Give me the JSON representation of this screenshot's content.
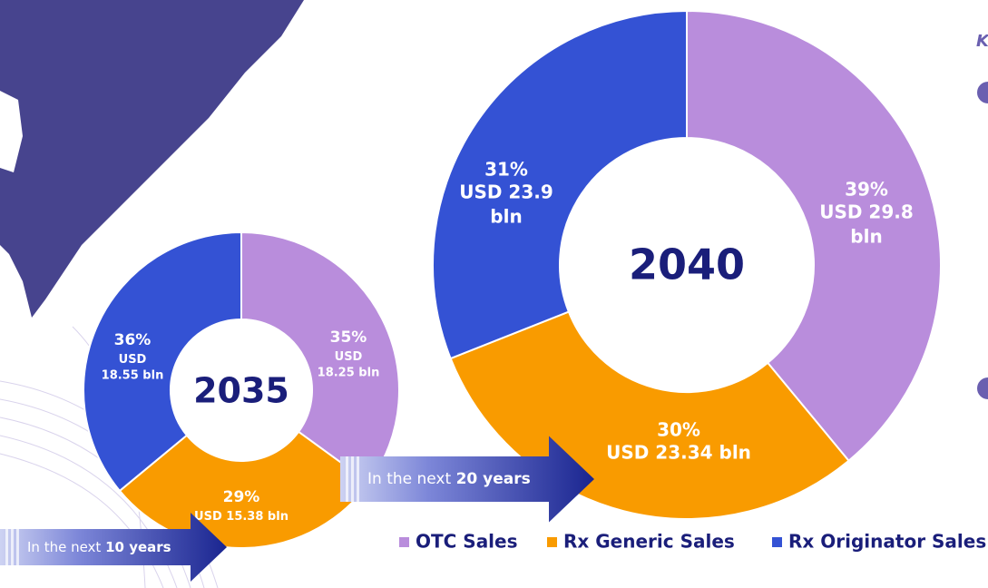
{
  "chart_data": [
    {
      "type": "pie",
      "title": "2035",
      "values": [
        35,
        29,
        36
      ],
      "value_labels": [
        "35%",
        "29%",
        "36%"
      ],
      "amount_labels": [
        [
          "USD",
          "18.25 bln"
        ],
        [
          "USD 15.38 bln"
        ],
        [
          "USD",
          "18.55 bln"
        ]
      ]
    },
    {
      "type": "pie",
      "title": "2040",
      "values": [
        39,
        30,
        31
      ],
      "value_labels": [
        "39%",
        "30%",
        "31%"
      ],
      "amount_labels": [
        [
          "USD 29.8",
          "bln"
        ],
        [
          "USD 23.34 bln"
        ],
        [
          "USD 23.9",
          "bln"
        ]
      ]
    }
  ],
  "legend": [
    {
      "name": "OTC Sales",
      "color": "#b98ddc"
    },
    {
      "name": "Rx Generic Sales",
      "color": "#f99b00"
    },
    {
      "name": "Rx Originator Sales",
      "color": "#3452d4"
    }
  ],
  "arrows": [
    {
      "text": "In the next ",
      "bold": "10 years"
    },
    {
      "text": "In the next ",
      "bold": "20 years"
    }
  ],
  "side_text": "K"
}
